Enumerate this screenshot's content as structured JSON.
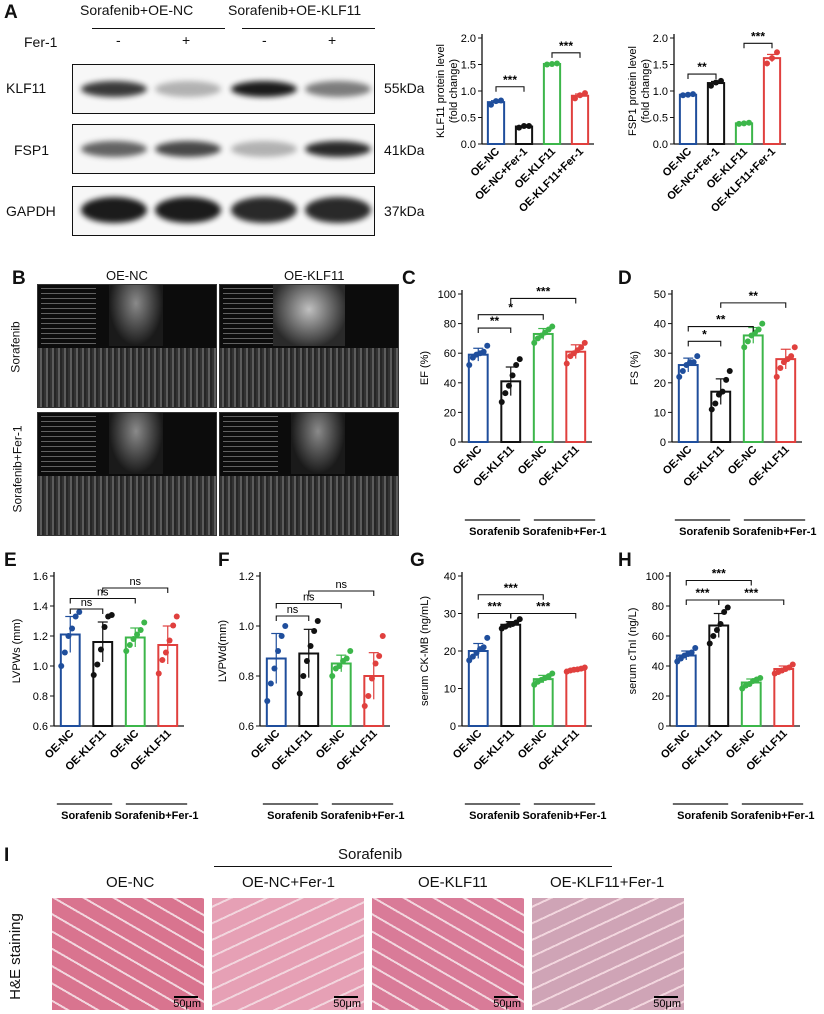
{
  "panel_letters": {
    "A": "A",
    "B": "B",
    "C": "C",
    "D": "D",
    "E": "E",
    "F": "F",
    "G": "G",
    "H": "H",
    "I": "I"
  },
  "blot": {
    "group1": "Sorafenib+OE-NC",
    "group2": "Sorafenib+OE-KLF11",
    "treatment_label": "Fer-1",
    "lane_signs": [
      "-",
      "+",
      "-",
      "+"
    ],
    "rows": [
      {
        "protein": "KLF11",
        "size": "55kDa",
        "intensity": [
          0.85,
          0.35,
          0.95,
          0.6
        ]
      },
      {
        "protein": "FSP1",
        "size": "41kDa",
        "intensity": [
          0.7,
          0.8,
          0.35,
          0.9
        ]
      },
      {
        "protein": "GAPDH",
        "size": "37kDa",
        "intensity": [
          0.95,
          0.95,
          0.9,
          0.9
        ]
      }
    ]
  },
  "echo": {
    "col1": "OE-NC",
    "col2": "OE-KLF11",
    "row1": "Sorafenib",
    "row2": "Sorafenib+Fer-1"
  },
  "he": {
    "group": "Sorafenib",
    "stain_label": "H&E staining",
    "scale": "50μm",
    "titles": [
      "OE-NC",
      "OE-NC+Fer-1",
      "OE-KLF11",
      "OE-KLF11+Fer-1"
    ],
    "tones": [
      "#d9748f",
      "#e6a0b5",
      "#d97b98",
      "#cfa4b6"
    ]
  },
  "colors": {
    "blue": "#1f4e9c",
    "black": "#111111",
    "green": "#3cb64a",
    "red": "#e0403e"
  },
  "chart_data": [
    {
      "id": "A1",
      "type": "bar",
      "ylabel": "KLF11 protein level\n(fold change)",
      "ylim": [
        0,
        2.0
      ],
      "yticks": [
        0.0,
        0.5,
        1.0,
        1.5,
        2.0
      ],
      "categories": [
        "OE-NC",
        "OE-NC+Fer-1",
        "OE-KLF11",
        "OE-KLF11+Fer-1"
      ],
      "values": [
        0.79,
        0.33,
        1.51,
        0.91
      ],
      "points": [
        [
          0.74,
          0.81,
          0.82
        ],
        [
          0.31,
          0.34,
          0.34
        ],
        [
          1.5,
          1.51,
          1.52
        ],
        [
          0.86,
          0.92,
          0.96
        ]
      ],
      "sig": [
        {
          "a": 0,
          "b": 1,
          "y": 1.08,
          "text": "***"
        },
        {
          "a": 2,
          "b": 3,
          "y": 1.72,
          "text": "***"
        }
      ]
    },
    {
      "id": "A2",
      "type": "bar",
      "ylabel": "FSP1 protein level\n(fold change)",
      "ylim": [
        0,
        2.0
      ],
      "yticks": [
        0.0,
        0.5,
        1.0,
        1.5,
        2.0
      ],
      "categories": [
        "OE-NC",
        "OE-NC+Fer-1",
        "OE-KLF11",
        "OE-KLF11+Fer-1"
      ],
      "values": [
        0.93,
        1.15,
        0.39,
        1.62
      ],
      "points": [
        [
          0.92,
          0.93,
          0.94
        ],
        [
          1.1,
          1.16,
          1.19
        ],
        [
          0.38,
          0.39,
          0.4
        ],
        [
          1.52,
          1.62,
          1.73
        ]
      ],
      "sig": [
        {
          "a": 0,
          "b": 1,
          "y": 1.32,
          "text": "**"
        },
        {
          "a": 2,
          "b": 3,
          "y": 1.9,
          "text": "***"
        }
      ]
    },
    {
      "id": "C",
      "type": "bar",
      "ylabel": "EF (%)",
      "ylim": [
        0,
        100
      ],
      "yticks": [
        0,
        20,
        40,
        60,
        80,
        100
      ],
      "categories": [
        "OE-NC",
        "OE-KLF11",
        "OE-NC",
        "OE-KLF11"
      ],
      "groups": [
        "Sorafenib",
        "Sorafenib+Fer-1"
      ],
      "values": [
        59,
        41,
        73,
        61
      ],
      "points": [
        [
          52,
          57,
          59,
          60,
          61,
          65
        ],
        [
          27,
          33,
          38,
          45,
          52,
          56
        ],
        [
          67,
          70,
          72,
          74,
          76,
          78
        ],
        [
          53,
          58,
          60,
          62,
          64,
          67
        ]
      ],
      "sig": [
        {
          "a": 0,
          "b": 1,
          "y": 77,
          "text": "**"
        },
        {
          "a": 0,
          "b": 2,
          "y": 86,
          "text": "*"
        },
        {
          "a": 1,
          "b": 3,
          "y": 97,
          "text": "***"
        }
      ]
    },
    {
      "id": "D",
      "type": "bar",
      "ylabel": "FS (%)",
      "ylim": [
        0,
        50
      ],
      "yticks": [
        0,
        10,
        20,
        30,
        40,
        50
      ],
      "categories": [
        "OE-NC",
        "OE-KLF11",
        "OE-NC",
        "OE-KLF11"
      ],
      "groups": [
        "Sorafenib",
        "Sorafenib+Fer-1"
      ],
      "values": [
        26,
        17,
        36,
        28
      ],
      "points": [
        [
          22,
          24,
          26,
          27,
          27,
          29
        ],
        [
          11,
          13,
          16,
          17,
          21,
          24
        ],
        [
          32,
          34,
          36,
          37,
          38,
          40
        ],
        [
          22,
          25,
          27,
          28,
          29,
          32
        ]
      ],
      "sig": [
        {
          "a": 0,
          "b": 1,
          "y": 34,
          "text": "*"
        },
        {
          "a": 0,
          "b": 2,
          "y": 39,
          "text": "**"
        },
        {
          "a": 1,
          "b": 3,
          "y": 47,
          "text": "**"
        }
      ]
    },
    {
      "id": "E",
      "type": "bar",
      "ylabel": "LVPWs (mm)",
      "ylim": [
        0.6,
        1.6
      ],
      "yticks": [
        0.6,
        0.8,
        1.0,
        1.2,
        1.4,
        1.6
      ],
      "categories": [
        "OE-NC",
        "OE-KLF11",
        "OE-NC",
        "OE-KLF11"
      ],
      "groups": [
        "Sorafenib",
        "Sorafenib+Fer-1"
      ],
      "values": [
        1.21,
        1.16,
        1.19,
        1.14
      ],
      "points": [
        [
          1.0,
          1.09,
          1.2,
          1.25,
          1.33,
          1.36
        ],
        [
          0.94,
          1.01,
          1.11,
          1.26,
          1.33,
          1.34
        ],
        [
          1.1,
          1.14,
          1.18,
          1.21,
          1.24,
          1.29
        ],
        [
          0.95,
          1.04,
          1.09,
          1.17,
          1.27,
          1.33
        ]
      ],
      "sig": [
        {
          "a": 0,
          "b": 1,
          "y": 1.38,
          "text": "ns"
        },
        {
          "a": 0,
          "b": 2,
          "y": 1.45,
          "text": "ns"
        },
        {
          "a": 1,
          "b": 3,
          "y": 1.52,
          "text": "ns"
        }
      ]
    },
    {
      "id": "F",
      "type": "bar",
      "ylabel": "LVPWd(mm)",
      "ylim": [
        0.6,
        1.2
      ],
      "yticks": [
        0.6,
        0.8,
        1.0,
        1.2
      ],
      "categories": [
        "OE-NC",
        "OE-KLF11",
        "OE-NC",
        "OE-KLF11"
      ],
      "groups": [
        "Sorafenib",
        "Sorafenib+Fer-1"
      ],
      "values": [
        0.87,
        0.89,
        0.85,
        0.8
      ],
      "points": [
        [
          0.7,
          0.77,
          0.83,
          0.9,
          0.96,
          1.0
        ],
        [
          0.73,
          0.8,
          0.86,
          0.92,
          0.98,
          1.02
        ],
        [
          0.8,
          0.83,
          0.84,
          0.86,
          0.87,
          0.9
        ],
        [
          0.68,
          0.72,
          0.79,
          0.85,
          0.88,
          0.96
        ]
      ],
      "sig": [
        {
          "a": 0,
          "b": 1,
          "y": 1.04,
          "text": "ns"
        },
        {
          "a": 0,
          "b": 2,
          "y": 1.09,
          "text": "ns"
        },
        {
          "a": 1,
          "b": 3,
          "y": 1.14,
          "text": "ns"
        }
      ]
    },
    {
      "id": "G",
      "type": "bar",
      "ylabel": "serum CK-MB (ng/mL)",
      "ylim": [
        0,
        40
      ],
      "yticks": [
        0,
        10,
        20,
        30,
        40
      ],
      "categories": [
        "OE-NC",
        "OE-KLF11",
        "OE-NC",
        "OE-KLF11"
      ],
      "groups": [
        "Sorafenib",
        "Sorafenib+Fer-1"
      ],
      "values": [
        20,
        27,
        12.5,
        15
      ],
      "points": [
        [
          17.5,
          18.5,
          19.5,
          20.5,
          21,
          23.5
        ],
        [
          26,
          26.5,
          27,
          27.2,
          27.6,
          28.5
        ],
        [
          11,
          11.8,
          12.3,
          12.8,
          13.3,
          14
        ],
        [
          14.5,
          14.8,
          15,
          15.1,
          15.3,
          15.6
        ]
      ],
      "sig": [
        {
          "a": 0,
          "b": 1,
          "y": 30,
          "text": "***"
        },
        {
          "a": 0,
          "b": 2,
          "y": 35,
          "text": "***"
        },
        {
          "a": 1,
          "b": 3,
          "y": 30,
          "text": "***"
        }
      ]
    },
    {
      "id": "H",
      "type": "bar",
      "ylabel": "serum cTnI (ng/L)",
      "ylim": [
        0,
        100
      ],
      "yticks": [
        0,
        20,
        40,
        60,
        80,
        100
      ],
      "categories": [
        "OE-NC",
        "OE-KLF11",
        "OE-NC",
        "OE-KLF11"
      ],
      "groups": [
        "Sorafenib",
        "Sorafenib+Fer-1"
      ],
      "values": [
        47,
        67,
        29,
        38
      ],
      "points": [
        [
          43,
          45,
          47,
          48,
          49,
          52
        ],
        [
          55,
          60,
          64,
          68,
          76,
          79
        ],
        [
          25,
          27,
          28,
          30,
          31,
          32
        ],
        [
          35,
          36,
          37,
          38,
          39,
          41
        ]
      ],
      "sig": [
        {
          "a": 0,
          "b": 1,
          "y": 84,
          "text": "***"
        },
        {
          "a": 0,
          "b": 2,
          "y": 97,
          "text": "***"
        },
        {
          "a": 1,
          "b": 3,
          "y": 84,
          "text": "***"
        }
      ]
    }
  ]
}
